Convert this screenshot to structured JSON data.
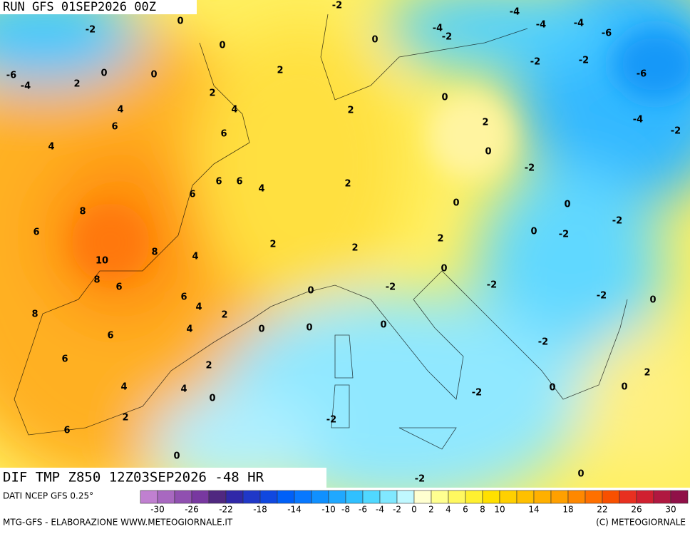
{
  "header": {
    "run": "RUN GFS 01SEP2026 00Z",
    "field": "DIF TMP Z850 12Z03SEP2026 -48 HR"
  },
  "footer": {
    "source": "DATI NCEP GFS 0.25°",
    "credit": "MTG-GFS - ELABORAZIONE WWW.METEOGIORNALE.IT",
    "copyright": "(C) METEOGIORNALE"
  },
  "colorbar": {
    "colors": [
      "#c080d0",
      "#a868c0",
      "#9050b0",
      "#7838a0",
      "#502880",
      "#3028a8",
      "#2038c8",
      "#1048e0",
      "#0060f8",
      "#0878ff",
      "#1090ff",
      "#20a8ff",
      "#30c0ff",
      "#50d8ff",
      "#80e8ff",
      "#c0f8ff",
      "#ffffd0",
      "#ffff90",
      "#fff860",
      "#fff030",
      "#ffe000",
      "#ffd000",
      "#ffc000",
      "#ffb000",
      "#ffa000",
      "#ff8800",
      "#ff7000",
      "#f85000",
      "#e83020",
      "#d02030",
      "#b01840",
      "#901048"
    ],
    "ticks": [
      -30,
      -26,
      -22,
      -18,
      -14,
      -10,
      -8,
      -6,
      -4,
      -2,
      0,
      2,
      4,
      6,
      8,
      10,
      14,
      18,
      22,
      26,
      30
    ]
  },
  "map": {
    "contour_labels": [
      -2,
      -4,
      -2,
      0,
      -4,
      -2,
      -4,
      -4,
      -6,
      0,
      0,
      -6,
      -4,
      0,
      0,
      2,
      2,
      -2,
      -2,
      -6,
      2,
      0,
      4,
      4,
      2,
      6,
      2,
      -4,
      -2,
      6,
      4,
      0,
      -2,
      6,
      6,
      4,
      2,
      6,
      0,
      0,
      8,
      -2,
      6,
      0,
      -2,
      2,
      2,
      2,
      8,
      4,
      10,
      0,
      8,
      6,
      0,
      -2,
      -2,
      6,
      4,
      -2,
      0,
      2,
      8,
      0,
      0,
      0,
      4,
      6,
      -2,
      6,
      2,
      2,
      4,
      4,
      0,
      0,
      -2,
      0,
      2,
      -2,
      6,
      0,
      0,
      -2
    ]
  }
}
